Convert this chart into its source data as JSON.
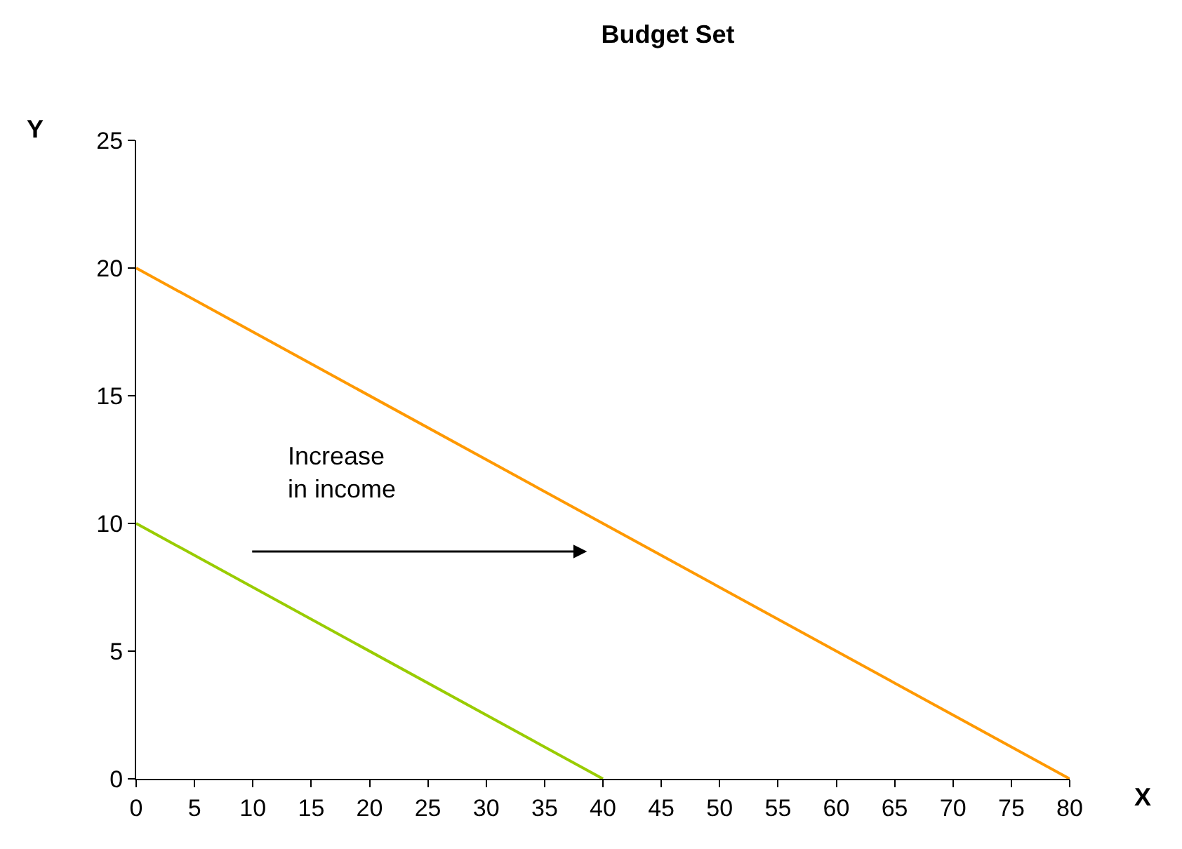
{
  "chart_data": {
    "type": "line",
    "title": "Budget Set",
    "xlabel": "X",
    "ylabel": "Y",
    "annotations": [
      "Increase\nin income"
    ],
    "series": [
      {
        "x": [
          0,
          40
        ],
        "values": [
          10,
          0
        ],
        "color": "#99cc00"
      },
      {
        "x": [
          0,
          80
        ],
        "values": [
          20,
          0
        ],
        "color": "#ff9900"
      }
    ],
    "xlim": [
      0,
      80
    ],
    "xticks": [
      0,
      5,
      10,
      15,
      20,
      25,
      30,
      35,
      40,
      45,
      50,
      55,
      60,
      65,
      70,
      75,
      80
    ],
    "ylim": [
      0,
      25
    ],
    "yticks": [
      0,
      5,
      10,
      15,
      20,
      25
    ],
    "marker": "none",
    "line_style": "solid"
  }
}
